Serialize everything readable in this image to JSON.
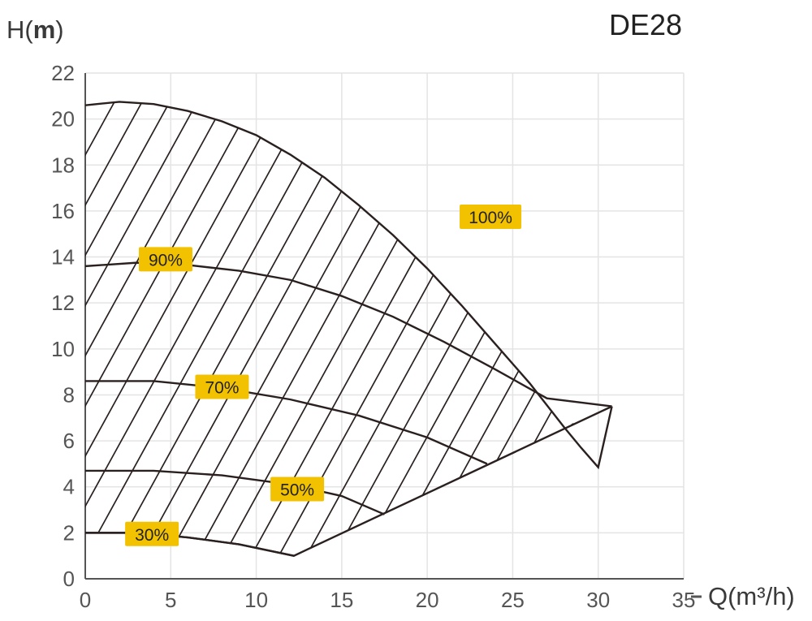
{
  "chart_data": {
    "type": "line",
    "title": "DE28",
    "ylabel_prefix": "H(",
    "ylabel_unit": "m",
    "ylabel_suffix": ")",
    "xlabel": "Q(m³/h)",
    "xlim": [
      0,
      35
    ],
    "ylim": [
      0,
      22
    ],
    "xticks": [
      0,
      5,
      10,
      15,
      20,
      25,
      30,
      35
    ],
    "yticks": [
      0,
      2,
      4,
      6,
      8,
      10,
      12,
      14,
      16,
      18,
      20,
      22
    ],
    "grid": true,
    "colors": {
      "curve": "#2a2020",
      "tag": "#f2c200",
      "grid": "#e4e4e4",
      "axis": "#555555"
    },
    "series": [
      {
        "name": "100%",
        "points": [
          [
            0,
            20.6
          ],
          [
            2,
            20.75
          ],
          [
            4,
            20.65
          ],
          [
            6,
            20.35
          ],
          [
            8,
            19.9
          ],
          [
            10,
            19.3
          ],
          [
            12,
            18.45
          ],
          [
            14,
            17.45
          ],
          [
            16,
            16.25
          ],
          [
            18,
            14.95
          ],
          [
            20,
            13.5
          ],
          [
            22,
            11.9
          ],
          [
            24,
            10.2
          ],
          [
            26,
            8.5
          ],
          [
            28,
            6.6
          ],
          [
            29,
            5.7
          ],
          [
            30,
            4.85
          ],
          [
            30.8,
            7.5
          ]
        ]
      },
      {
        "name": "90%",
        "points": [
          [
            0,
            13.6
          ],
          [
            3,
            13.75
          ],
          [
            6,
            13.65
          ],
          [
            9,
            13.4
          ],
          [
            12,
            13.0
          ],
          [
            15,
            12.3
          ],
          [
            18,
            11.4
          ],
          [
            21,
            10.3
          ],
          [
            24,
            9.1
          ],
          [
            27,
            7.85
          ],
          [
            30.8,
            7.5
          ]
        ]
      },
      {
        "name": "70%",
        "points": [
          [
            0,
            8.6
          ],
          [
            4,
            8.6
          ],
          [
            8,
            8.3
          ],
          [
            12,
            7.8
          ],
          [
            16,
            7.1
          ],
          [
            20,
            6.15
          ],
          [
            23.5,
            5.0
          ]
        ]
      },
      {
        "name": "50%",
        "points": [
          [
            0,
            4.7
          ],
          [
            4,
            4.7
          ],
          [
            8,
            4.5
          ],
          [
            12,
            4.1
          ],
          [
            15,
            3.6
          ],
          [
            17.5,
            2.8
          ]
        ]
      },
      {
        "name": "30%",
        "points": [
          [
            0,
            2.0
          ],
          [
            3,
            2.0
          ],
          [
            6,
            1.8
          ],
          [
            9,
            1.5
          ],
          [
            12.2,
            1.0
          ]
        ]
      }
    ],
    "envelope": {
      "upper": [
        [
          0,
          20.6
        ],
        [
          2,
          20.75
        ],
        [
          4,
          20.65
        ],
        [
          6,
          20.35
        ],
        [
          8,
          19.9
        ],
        [
          10,
          19.3
        ],
        [
          12,
          18.45
        ],
        [
          14,
          17.45
        ],
        [
          16,
          16.25
        ],
        [
          18,
          14.95
        ],
        [
          20,
          13.5
        ],
        [
          22,
          11.9
        ],
        [
          24,
          10.2
        ],
        [
          26,
          8.5
        ],
        [
          28,
          6.6
        ],
        [
          30.8,
          7.5
        ]
      ],
      "lower": [
        [
          0,
          2.0
        ],
        [
          3,
          2.0
        ],
        [
          6,
          1.8
        ],
        [
          9,
          1.5
        ],
        [
          12.2,
          1.0
        ],
        [
          30.8,
          7.5
        ]
      ]
    },
    "labels": [
      {
        "text": "100%",
        "x": 23.7,
        "y": 15.75
      },
      {
        "text": "90%",
        "x": 4.7,
        "y": 13.9
      },
      {
        "text": "70%",
        "x": 8.0,
        "y": 8.35
      },
      {
        "text": "50%",
        "x": 12.4,
        "y": 3.9
      },
      {
        "text": "30%",
        "x": 3.9,
        "y": 1.95
      }
    ]
  }
}
